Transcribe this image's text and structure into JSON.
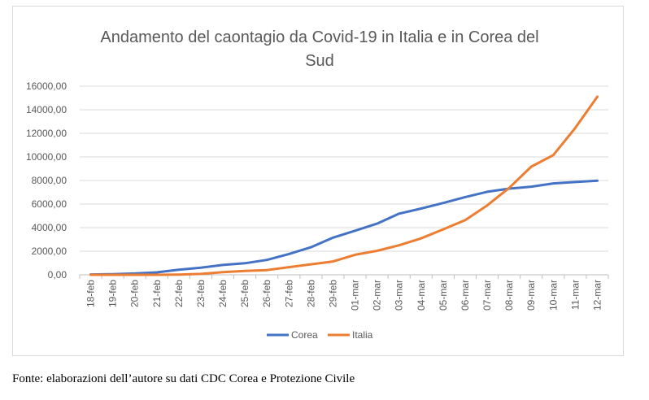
{
  "chart_data": {
    "type": "line",
    "title": "Andamento del caontagio da Covid-19 in Italia e in Corea del Sud",
    "title_lines": [
      "Andamento del caontagio da Covid-19 in Italia e in Corea del",
      "Sud"
    ],
    "categories": [
      "18-feb",
      "19-feb",
      "20-feb",
      "21-feb",
      "22-feb",
      "23-feb",
      "24-feb",
      "25-feb",
      "26-feb",
      "27-feb",
      "28-feb",
      "29-feb",
      "01-mar",
      "02-mar",
      "03-mar",
      "04-mar",
      "05-mar",
      "06-mar",
      "07-mar",
      "08-mar",
      "09-mar",
      "10-mar",
      "11-mar",
      "12-mar"
    ],
    "y_ticks": [
      "0,00",
      "2000,00",
      "4000,00",
      "6000,00",
      "8000,00",
      "10000,00",
      "12000,00",
      "14000,00",
      "16000,00"
    ],
    "ylim": [
      0,
      16000
    ],
    "grid": true,
    "legend_position": "bottom",
    "series": [
      {
        "name": "Corea",
        "color": "#4472c4",
        "values": [
          31,
          58,
          111,
          209,
          436,
          602,
          833,
          977,
          1261,
          1766,
          2337,
          3150,
          3736,
          4335,
          5186,
          5621,
          6088,
          6593,
          7041,
          7313,
          7478,
          7755,
          7869,
          7979
        ]
      },
      {
        "name": "Italia",
        "color": "#ed7d31",
        "values": [
          3,
          3,
          3,
          3,
          20,
          79,
          229,
          322,
          400,
          650,
          888,
          1128,
          1694,
          2036,
          2502,
          3089,
          3858,
          4636,
          5883,
          7375,
          9172,
          10149,
          12462,
          15113
        ]
      }
    ]
  },
  "caption": "Fonte: elaborazioni dell’autore su dati CDC Corea e Protezione Civile"
}
